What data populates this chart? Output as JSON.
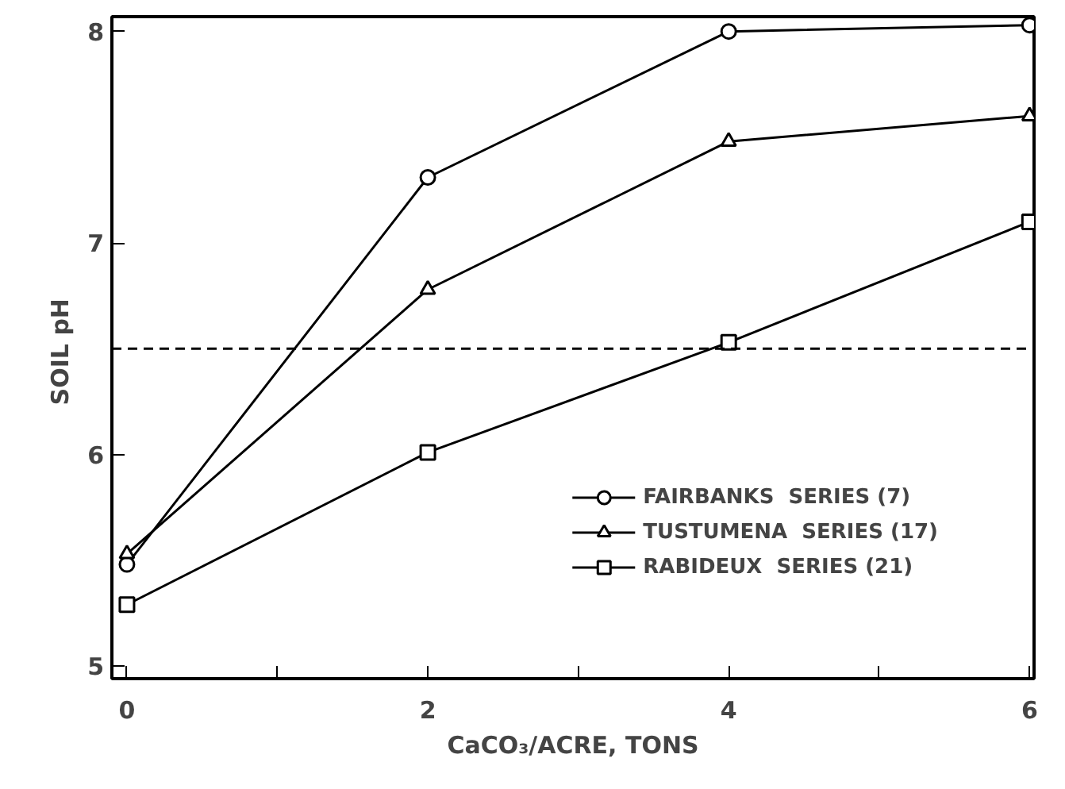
{
  "chart_data": {
    "type": "line",
    "xlabel": "CaCO₃/ACRE, TONS",
    "ylabel": "SOIL  pH",
    "x": [
      0,
      2,
      4,
      6
    ],
    "series": [
      {
        "name": "FAIRBANKS  SERIES (7)",
        "color": "#000000",
        "marker": "circle",
        "values": [
          5.48,
          7.31,
          8.0,
          8.03
        ]
      },
      {
        "name": "TUSTUMENA  SERIES (17)",
        "color": "#000000",
        "marker": "triangle",
        "values": [
          5.53,
          6.78,
          7.48,
          7.6
        ]
      },
      {
        "name": "RABIDEUX  SERIES (21)",
        "color": "#000000",
        "marker": "square",
        "values": [
          5.29,
          6.01,
          6.53,
          7.1
        ]
      }
    ],
    "xlim": [
      -0.1,
      6.03
    ],
    "ylim": [
      4.94,
      8.07
    ],
    "xticks": [
      0,
      {
        "value": 1,
        "label": null
      },
      2,
      {
        "value": 3,
        "label": null
      },
      4,
      {
        "value": 5,
        "label": null
      },
      6
    ],
    "yticks": [
      5,
      6,
      7,
      8
    ],
    "ref_lines": [
      {
        "axis": "y",
        "value": 6.5,
        "label": null,
        "color": "#000000",
        "line_style": "dashed"
      }
    ],
    "grid": false,
    "legend": "right",
    "line_style": "solid"
  }
}
